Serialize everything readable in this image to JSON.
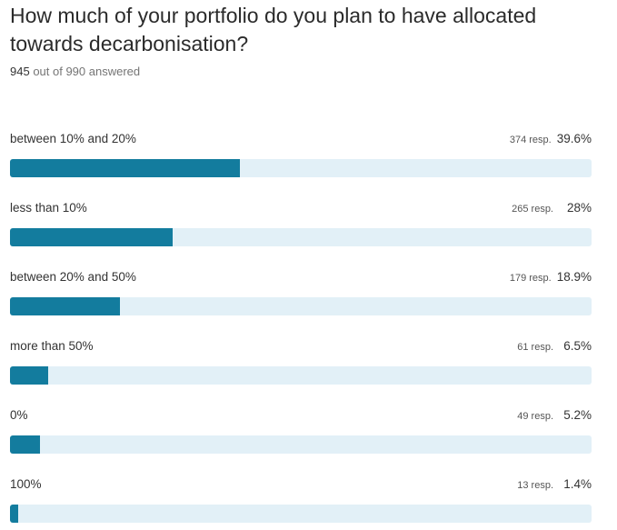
{
  "question": {
    "title": "How much of your portfolio do you plan to have allocated towards decarbonisation?",
    "answered_count": "945",
    "answered_rest": " out of 990 answered"
  },
  "colors": {
    "bar_fill": "#137c9e",
    "bar_track": "#e2f0f7"
  },
  "chart_data": {
    "type": "bar",
    "orientation": "horizontal",
    "title": "How much of your portfolio do you plan to have allocated towards decarbonisation?",
    "xlim": [
      0,
      100
    ],
    "categories": [
      "between 10% and 20%",
      "less than 10%",
      "between 20% and 50%",
      "more than 50%",
      "0%",
      "100%"
    ],
    "responses": [
      374,
      265,
      179,
      61,
      49,
      13
    ],
    "percent_values": [
      39.6,
      28,
      18.9,
      6.5,
      5.2,
      1.4
    ],
    "resp_labels": [
      "374 resp.",
      "265 resp.",
      "179 resp.",
      "61 resp.",
      "49 resp.",
      "13 resp."
    ],
    "pct_labels": [
      "39.6%",
      "28%",
      "18.9%",
      "6.5%",
      "5.2%",
      "1.4%"
    ]
  }
}
